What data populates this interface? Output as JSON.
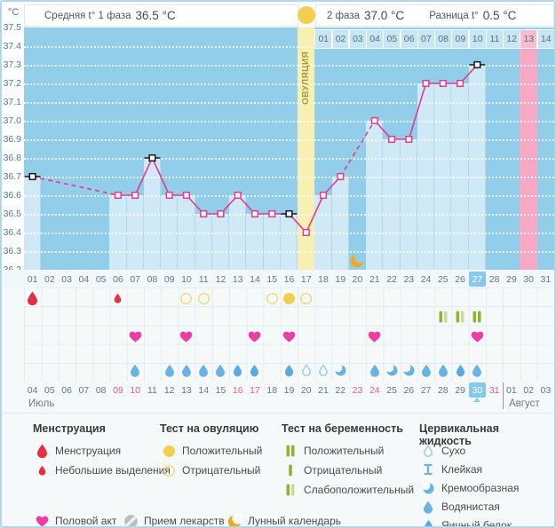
{
  "header": {
    "unit": "°C",
    "phase1_label": "Средняя t° 1 фаза",
    "phase1_value": "36.5 °C",
    "phase2_label": "2 фаза",
    "phase2_value": "37.0 °C",
    "diff_label": "Разница t°",
    "diff_value": "0.5 °C"
  },
  "chart_data": {
    "type": "line",
    "title": "График базальной температуры",
    "ylabel": "°C",
    "ylim": [
      36.2,
      37.5
    ],
    "ytick_step": 0.1,
    "y_ticks": [
      "37.5",
      "37.4",
      "37.3",
      "37.2",
      "37.1",
      "37.0",
      "36.9",
      "36.8",
      "36.7",
      "36.6",
      "36.5",
      "36.4",
      "36.3",
      "36.2"
    ],
    "x_days": 31,
    "temps": [
      {
        "day": 1,
        "t": 36.7
      },
      {
        "day": 6,
        "t": 36.6
      },
      {
        "day": 7,
        "t": 36.6
      },
      {
        "day": 8,
        "t": 36.8
      },
      {
        "day": 9,
        "t": 36.6
      },
      {
        "day": 10,
        "t": 36.6
      },
      {
        "day": 11,
        "t": 36.5
      },
      {
        "day": 12,
        "t": 36.5
      },
      {
        "day": 13,
        "t": 36.6
      },
      {
        "day": 14,
        "t": 36.5
      },
      {
        "day": 15,
        "t": 36.5
      },
      {
        "day": 16,
        "t": 36.5
      },
      {
        "day": 17,
        "t": 36.4
      },
      {
        "day": 18,
        "t": 36.6
      },
      {
        "day": 19,
        "t": 36.7
      },
      {
        "day": 21,
        "t": 37.0
      },
      {
        "day": 22,
        "t": 36.9
      },
      {
        "day": 23,
        "t": 36.9
      },
      {
        "day": 24,
        "t": 37.2
      },
      {
        "day": 25,
        "t": 37.2
      },
      {
        "day": 26,
        "t": 37.2
      },
      {
        "day": 27,
        "t": 37.3
      }
    ],
    "black_marker_days": [
      1,
      8,
      16,
      27
    ],
    "ovulation_day": 17,
    "ovulation_label": "ОВУЛЯЦИЯ",
    "moon_day": 20,
    "pink_day": 30,
    "today_day": 27,
    "phase2_row": {
      "start_day": 18,
      "labels": [
        "01",
        "02",
        "03",
        "04",
        "05",
        "06",
        "07",
        "08",
        "09",
        "10",
        "11",
        "12",
        "13",
        "14"
      ],
      "pink_index": 12
    }
  },
  "day_row": {
    "labels": [
      "01",
      "02",
      "03",
      "04",
      "05",
      "06",
      "07",
      "08",
      "09",
      "10",
      "11",
      "12",
      "13",
      "14",
      "15",
      "16",
      "17",
      "18",
      "19",
      "20",
      "21",
      "22",
      "23",
      "24",
      "25",
      "26",
      "27",
      "28",
      "29",
      "30",
      "31"
    ],
    "today_index": 26
  },
  "marks": {
    "menstruation": [
      {
        "day": 1,
        "type": "menses"
      },
      {
        "day": 6,
        "type": "spotting"
      }
    ],
    "ovulation_test": [
      {
        "day": 10,
        "result": "negative"
      },
      {
        "day": 11,
        "result": "negative"
      },
      {
        "day": 15,
        "result": "negative"
      },
      {
        "day": 16,
        "result": "positive"
      },
      {
        "day": 17,
        "result": "negative"
      }
    ],
    "pregnancy_test": [
      {
        "day": 25,
        "result": "weak"
      },
      {
        "day": 26,
        "result": "weak"
      },
      {
        "day": 27,
        "result": "positive"
      }
    ],
    "intercourse_days": [
      7,
      10,
      14,
      16,
      21,
      27
    ],
    "fluid": [
      {
        "day": 7,
        "type": "watery"
      },
      {
        "day": 9,
        "type": "watery"
      },
      {
        "day": 10,
        "type": "watery"
      },
      {
        "day": 11,
        "type": "watery"
      },
      {
        "day": 12,
        "type": "watery"
      },
      {
        "day": 13,
        "type": "eggwhite"
      },
      {
        "day": 14,
        "type": "eggwhite"
      },
      {
        "day": 16,
        "type": "eggwhite"
      },
      {
        "day": 17,
        "type": "dry"
      },
      {
        "day": 18,
        "type": "dry"
      },
      {
        "day": 19,
        "type": "creamy"
      },
      {
        "day": 21,
        "type": "watery"
      },
      {
        "day": 22,
        "type": "creamy"
      },
      {
        "day": 23,
        "type": "creamy"
      },
      {
        "day": 24,
        "type": "watery"
      },
      {
        "day": 25,
        "type": "watery"
      },
      {
        "day": 26,
        "type": "eggwhite"
      },
      {
        "day": 27,
        "type": "watery"
      }
    ]
  },
  "dates_row": {
    "labels": [
      "04",
      "05",
      "06",
      "07",
      "08",
      "09",
      "10",
      "11",
      "12",
      "13",
      "14",
      "15",
      "16",
      "17",
      "18",
      "19",
      "20",
      "21",
      "22",
      "23",
      "24",
      "25",
      "26",
      "27",
      "28",
      "29",
      "30",
      "31",
      "01",
      "02",
      "03"
    ],
    "weekend_indices": [
      5,
      6,
      12,
      13,
      19,
      20,
      27
    ],
    "today_index": 26,
    "divider_before_index": 28,
    "month_left": "Июль",
    "month_right": "Август"
  },
  "legend": {
    "columns": [
      {
        "title": "Менструация",
        "items": [
          {
            "icon": "menses-drop-large-icon",
            "label": "Менструация"
          },
          {
            "icon": "menses-drop-small-icon",
            "label": "Небольшие выделения"
          }
        ]
      },
      {
        "title": "Тест на овуляцию",
        "items": [
          {
            "icon": "ovu-test-positive-icon",
            "label": "Положительный"
          },
          {
            "icon": "ovu-test-negative-icon",
            "label": "Отрицательный"
          }
        ]
      },
      {
        "title": "Тест на беременность",
        "items": [
          {
            "icon": "preg-test-positive-icon",
            "label": "Положительный"
          },
          {
            "icon": "preg-test-negative-icon",
            "label": "Отрицательный"
          },
          {
            "icon": "preg-test-weak-icon",
            "label": "Слабоположительный"
          }
        ]
      },
      {
        "title": "Цервикальная жидкость",
        "items": [
          {
            "icon": "fluid-dry-icon",
            "label": "Сухо"
          },
          {
            "icon": "fluid-sticky-icon",
            "label": "Клейкая"
          },
          {
            "icon": "fluid-creamy-icon",
            "label": "Кремообразная"
          },
          {
            "icon": "fluid-watery-icon",
            "label": "Водянистая"
          },
          {
            "icon": "fluid-eggwhite-icon",
            "label": "Яичный белок"
          }
        ]
      }
    ],
    "bottom": [
      {
        "icon": "intercourse-heart-icon",
        "label": "Половой акт"
      },
      {
        "icon": "medication-pill-icon",
        "label": "Прием лекарств"
      },
      {
        "icon": "moon-crescent-icon",
        "label": "Лунный календарь"
      }
    ]
  },
  "colors": {
    "line": "#e23a8e",
    "bar": "#cfe9f7",
    "plot_bg": "#92cde9",
    "ovulation_col": "#f8efb2",
    "pink_col": "#f7a9c4",
    "today_blue": "#86c9ec",
    "weekend_red": "#e8607e",
    "heart": "#f03ca6",
    "test_green": "#8fb433",
    "test_green_pale": "#ccd89c",
    "drop_red": "#e62e42",
    "ovu_yellow": "#f2cf4d",
    "ovu_yellow_outline": "#f0d87a",
    "fluid_blue": "#68b2e4",
    "moon_orange": "#f5a81f",
    "pill_gray": "#b9bec0",
    "marker_black": "#1a1a1a"
  }
}
